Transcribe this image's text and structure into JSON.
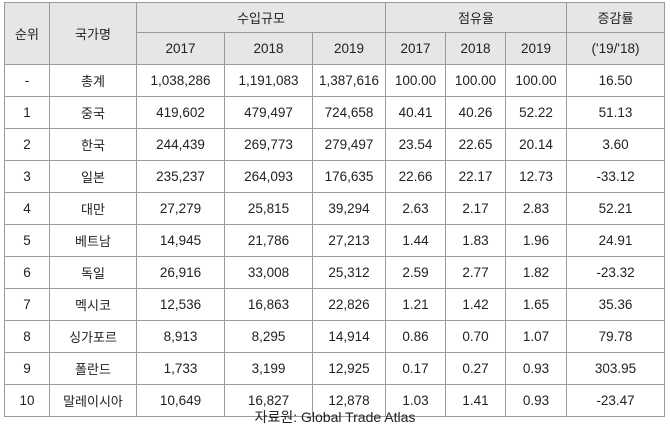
{
  "table": {
    "headers": {
      "rank": "순위",
      "country": "국가명",
      "import_scale": "수입규모",
      "share": "점유율",
      "growth": "증감률",
      "growth_sub": "('19/'18)",
      "years": [
        "2017",
        "2018",
        "2019"
      ]
    },
    "rows": [
      {
        "rank": "-",
        "country": "총계",
        "i2017": "1,038,286",
        "i2018": "1,191,083",
        "i2019": "1,387,616",
        "s2017": "100.00",
        "s2018": "100.00",
        "s2019": "100.00",
        "growth": "16.50"
      },
      {
        "rank": "1",
        "country": "중국",
        "i2017": "419,602",
        "i2018": "479,497",
        "i2019": "724,658",
        "s2017": "40.41",
        "s2018": "40.26",
        "s2019": "52.22",
        "growth": "51.13"
      },
      {
        "rank": "2",
        "country": "한국",
        "i2017": "244,439",
        "i2018": "269,773",
        "i2019": "279,497",
        "s2017": "23.54",
        "s2018": "22.65",
        "s2019": "20.14",
        "growth": "3.60"
      },
      {
        "rank": "3",
        "country": "일본",
        "i2017": "235,237",
        "i2018": "264,093",
        "i2019": "176,635",
        "s2017": "22.66",
        "s2018": "22.17",
        "s2019": "12.73",
        "growth": "-33.12"
      },
      {
        "rank": "4",
        "country": "대만",
        "i2017": "27,279",
        "i2018": "25,815",
        "i2019": "39,294",
        "s2017": "2.63",
        "s2018": "2.17",
        "s2019": "2.83",
        "growth": "52.21"
      },
      {
        "rank": "5",
        "country": "베트남",
        "i2017": "14,945",
        "i2018": "21,786",
        "i2019": "27,213",
        "s2017": "1.44",
        "s2018": "1.83",
        "s2019": "1.96",
        "growth": "24.91"
      },
      {
        "rank": "6",
        "country": "독일",
        "i2017": "26,916",
        "i2018": "33,008",
        "i2019": "25,312",
        "s2017": "2.59",
        "s2018": "2.77",
        "s2019": "1.82",
        "growth": "-23.32"
      },
      {
        "rank": "7",
        "country": "멕시코",
        "i2017": "12,536",
        "i2018": "16,863",
        "i2019": "22,826",
        "s2017": "1.21",
        "s2018": "1.42",
        "s2019": "1.65",
        "growth": "35.36"
      },
      {
        "rank": "8",
        "country": "싱가포르",
        "i2017": "8,913",
        "i2018": "8,295",
        "i2019": "14,914",
        "s2017": "0.86",
        "s2018": "0.70",
        "s2019": "1.07",
        "growth": "79.78"
      },
      {
        "rank": "9",
        "country": "폴란드",
        "i2017": "1,733",
        "i2018": "3,199",
        "i2019": "12,925",
        "s2017": "0.17",
        "s2018": "0.27",
        "s2019": "0.93",
        "growth": "303.95"
      },
      {
        "rank": "10",
        "country": "말레이시아",
        "i2017": "10,649",
        "i2018": "16,827",
        "i2019": "12,878",
        "s2017": "1.03",
        "s2018": "1.41",
        "s2019": "0.93",
        "growth": "-23.47"
      }
    ]
  },
  "caption": {
    "label": "자료원",
    "source": ": Global Trade Atlas"
  }
}
